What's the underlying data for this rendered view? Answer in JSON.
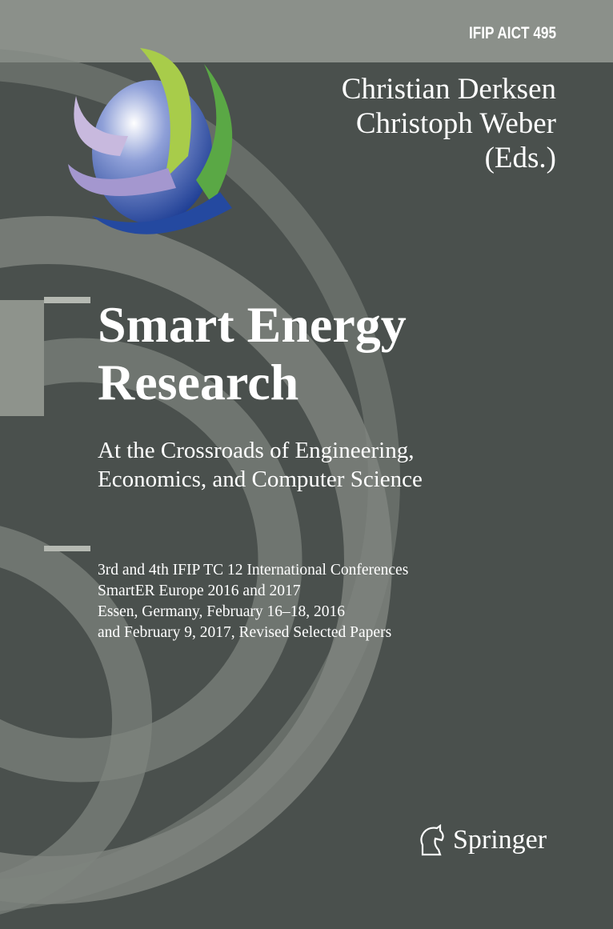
{
  "cover": {
    "series": "IFIP AICT 495",
    "editors": [
      "Christian Derksen",
      "Christoph Weber",
      "(Eds.)"
    ],
    "title": [
      "Smart Energy",
      "Research"
    ],
    "subtitle": [
      "At the Crossroads of Engineering,",
      "Economics, and Computer Science"
    ],
    "details": [
      "3rd and 4th IFIP TC 12 International Conferences",
      "SmartER Europe 2016 and 2017",
      "Essen, Germany, February 16–18, 2016",
      "and February 9, 2017, Revised Selected Papers"
    ],
    "publisher": "Springer",
    "colors": {
      "background": "#4a504d",
      "top_band": "#8b908a",
      "arc": "#7e847e",
      "globe": "#2f56a8",
      "green": "#5aa845",
      "lime": "#a8cc4a",
      "lilac": "#b8a9d6"
    }
  }
}
